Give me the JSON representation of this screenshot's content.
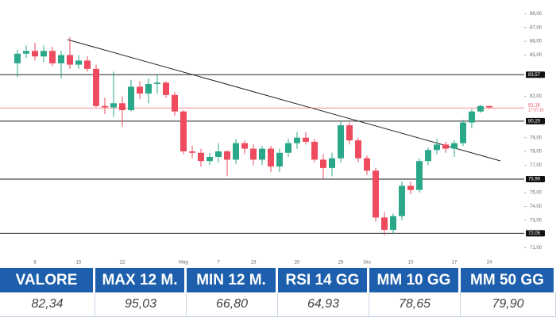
{
  "chart_data": {
    "type": "candlestick",
    "categories": [
      null,
      null,
      "8",
      null,
      null,
      null,
      null,
      "15",
      null,
      null,
      null,
      null,
      "22",
      null,
      null,
      null,
      null,
      null,
      null,
      "Mag",
      null,
      null,
      null,
      "7",
      null,
      null,
      null,
      "13",
      null,
      null,
      null,
      null,
      "20",
      null,
      null,
      null,
      null,
      "28",
      null,
      null,
      "Giu",
      null,
      null,
      null,
      null,
      "10",
      null,
      null,
      null,
      null,
      "17",
      null,
      null,
      null,
      "24"
    ],
    "open": [
      84.4,
      85.1,
      85.3,
      84.9,
      85.3,
      84.4,
      85.0,
      84.3,
      84.6,
      84.0,
      81.3,
      81.2,
      81.5,
      81.0,
      82.7,
      82.2,
      82.9,
      83.0,
      82.1,
      80.9,
      78.0,
      77.9,
      77.3,
      77.6,
      78.0,
      77.4,
      78.6,
      78.2,
      77.4,
      78.2,
      76.9,
      77.9,
      78.6,
      79.0,
      78.7,
      77.4,
      76.8,
      77.5,
      79.9,
      78.8,
      77.5,
      76.6,
      73.2,
      72.3,
      73.3,
      75.5,
      75.2,
      77.3,
      78.1,
      78.5,
      78.2,
      78.6,
      80.1,
      80.9,
      81.3
    ],
    "high": [
      85.4,
      85.7,
      85.9,
      85.7,
      85.6,
      85.3,
      86.3,
      85.0,
      84.9,
      84.3,
      81.9,
      83.8,
      82.0,
      83.2,
      83.1,
      83.3,
      83.6,
      83.1,
      82.3,
      81.0,
      78.4,
      78.2,
      77.9,
      78.6,
      78.1,
      78.9,
      78.8,
      78.5,
      78.4,
      78.4,
      78.2,
      78.9,
      79.4,
      79.4,
      78.9,
      77.8,
      77.9,
      80.2,
      80.1,
      79.0,
      77.7,
      76.8,
      73.6,
      73.5,
      75.8,
      75.8,
      77.5,
      78.3,
      78.9,
      78.7,
      78.8,
      80.3,
      81.1,
      81.4,
      81.3
    ],
    "low": [
      83.4,
      84.8,
      84.6,
      84.5,
      84.2,
      83.3,
      84.0,
      84.0,
      83.8,
      81.2,
      80.7,
      80.5,
      79.8,
      80.9,
      81.8,
      81.5,
      82.2,
      81.9,
      80.6,
      77.8,
      77.5,
      76.9,
      77.0,
      77.2,
      76.2,
      77.1,
      77.8,
      77.0,
      77.0,
      76.5,
      76.5,
      77.6,
      78.2,
      78.5,
      77.2,
      76.0,
      76.2,
      77.2,
      78.5,
      77.2,
      76.3,
      72.9,
      71.9,
      72.0,
      73.0,
      74.9,
      75.0,
      77.0,
      77.8,
      77.9,
      77.6,
      78.4,
      79.7,
      80.8,
      81.1
    ],
    "close": [
      85.1,
      85.3,
      84.9,
      85.3,
      84.4,
      85.0,
      84.3,
      84.6,
      84.0,
      81.3,
      81.2,
      81.5,
      81.0,
      82.7,
      82.2,
      82.9,
      83.0,
      82.1,
      80.9,
      78.0,
      77.9,
      77.3,
      77.6,
      78.0,
      77.4,
      78.6,
      78.2,
      77.4,
      78.2,
      76.9,
      77.9,
      78.6,
      79.0,
      78.7,
      77.4,
      76.8,
      77.5,
      79.9,
      78.8,
      77.5,
      76.6,
      73.2,
      72.3,
      73.3,
      75.5,
      75.2,
      77.3,
      78.1,
      78.5,
      78.2,
      78.6,
      80.1,
      80.9,
      81.3,
      81.2
    ],
    "up_color": "#2aa889",
    "down_color": "#ee4b5e",
    "ylim": [
      70,
      89
    ],
    "yticks": [
      {
        "value": 88,
        "label": "88,00"
      },
      {
        "value": 87,
        "label": "87,00"
      },
      {
        "value": 86,
        "label": "86,00"
      },
      {
        "value": 85,
        "label": "85,00"
      },
      {
        "value": 82,
        "label": "82,00"
      },
      {
        "value": 79,
        "label": "79,00"
      },
      {
        "value": 78,
        "label": "78,00"
      },
      {
        "value": 77,
        "label": "77,00"
      },
      {
        "value": 75,
        "label": "75,00"
      },
      {
        "value": 74,
        "label": "74,00"
      },
      {
        "value": 73,
        "label": "73,00"
      },
      {
        "value": 71,
        "label": "71,00"
      }
    ],
    "levels": [
      {
        "value": 83.57,
        "label": "83,57"
      },
      {
        "value": 80.2,
        "label": "80,20"
      },
      {
        "value": 75.99,
        "label": "75,99"
      },
      {
        "value": 72.05,
        "label": "72,05"
      }
    ],
    "last_price": {
      "value": 81.16,
      "label": "81,16",
      "countdown": "17:07:16"
    }
  },
  "table": {
    "headers": [
      "VALORE",
      "MAX 12 M.",
      "MIN 12 M.",
      "RSI 14 GG",
      "MM 10 GG",
      "MM 50 GG"
    ],
    "values": [
      "82,34",
      "95,03",
      "66,80",
      "64,93",
      "78,65",
      "79,90"
    ]
  }
}
